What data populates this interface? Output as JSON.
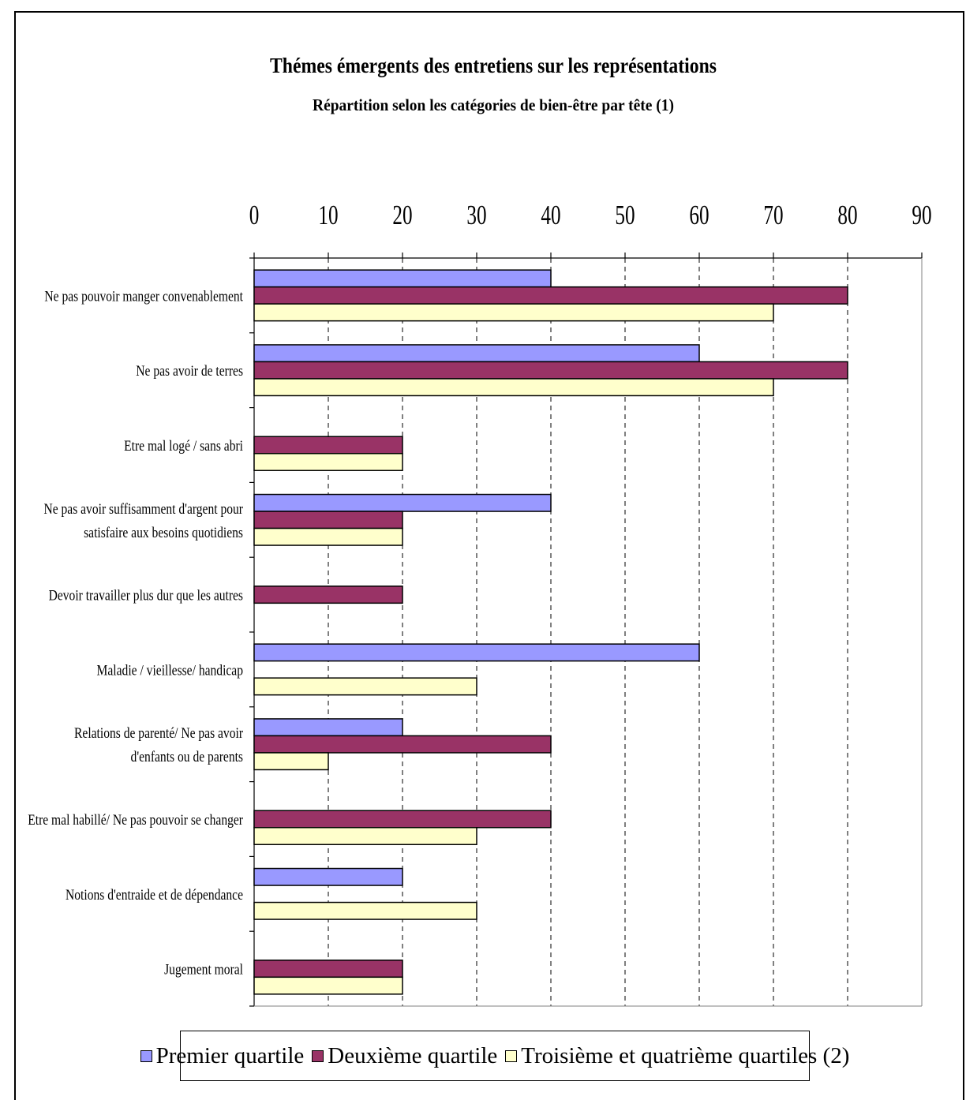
{
  "chart_data": {
    "type": "bar",
    "orientation": "horizontal",
    "title": "Thémes émergents des entretiens sur les représentations",
    "subtitle": "Répartition selon les catégories de bien-être par tête (1)",
    "xlim": [
      0,
      90
    ],
    "xticks": [
      0,
      10,
      20,
      30,
      40,
      50,
      60,
      70,
      80,
      90
    ],
    "grid": "vertical dashed",
    "legend_position": "bottom",
    "categories": [
      [
        "Ne pas pouvoir manger convenablement"
      ],
      [
        "Ne pas avoir de terres"
      ],
      [
        "Etre mal logé / sans abri"
      ],
      [
        "Ne pas avoir suffisamment d'argent pour",
        "satisfaire aux besoins quotidiens"
      ],
      [
        "Devoir travailler plus dur que les autres"
      ],
      [
        "Maladie / vieillesse/ handicap"
      ],
      [
        "Relations de parenté/ Ne pas avoir",
        "d'enfants ou de parents"
      ],
      [
        "Etre mal habillé/ Ne pas pouvoir se changer"
      ],
      [
        "Notions d'entraide et de dépendance"
      ],
      [
        "Jugement moral"
      ]
    ],
    "series": [
      {
        "name": "Premier quartile",
        "color": "#9999ff",
        "values": [
          40,
          60,
          0,
          40,
          0,
          60,
          20,
          0,
          20,
          0
        ]
      },
      {
        "name": "Deuxième quartile",
        "color": "#993366",
        "values": [
          80,
          80,
          20,
          20,
          20,
          0,
          40,
          40,
          0,
          20
        ]
      },
      {
        "name": "Troisième et quatrième quartiles (2)",
        "color": "#ffffcc",
        "values": [
          70,
          70,
          20,
          20,
          0,
          30,
          10,
          30,
          30,
          20
        ]
      }
    ]
  }
}
